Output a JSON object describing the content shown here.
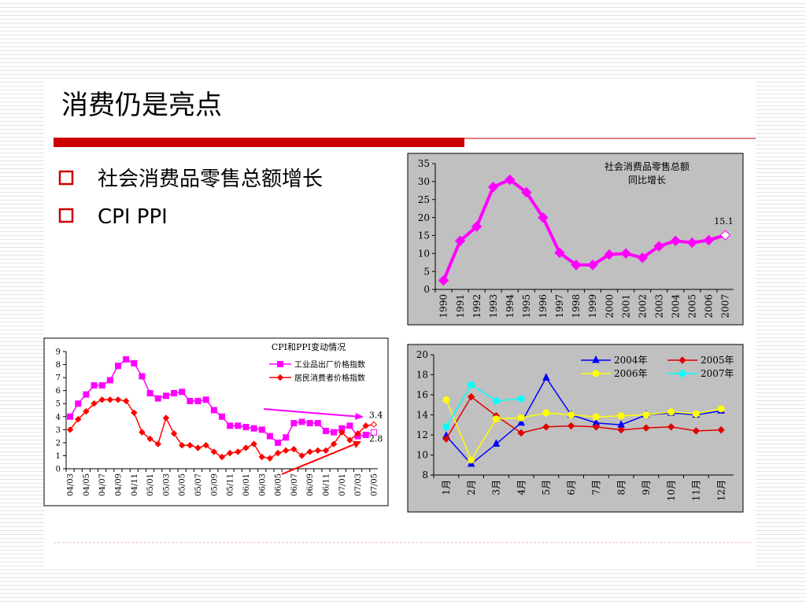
{
  "title": "消费仍是亮点",
  "bullets": [
    "社会消费品零售总额增长",
    "CPI PPI"
  ],
  "chart_data": [
    {
      "type": "line",
      "title": [
        "社会消费品零售总额",
        "同比增长"
      ],
      "categories": [
        "1990",
        "1991",
        "1992",
        "1993",
        "1994",
        "1995",
        "1996",
        "1997",
        "1998",
        "1999",
        "2000",
        "2001",
        "2002",
        "2003",
        "2004",
        "2005",
        "2006",
        "2007"
      ],
      "values": [
        2.5,
        13.5,
        17.5,
        28.5,
        30.5,
        27,
        20,
        10.2,
        6.8,
        6.8,
        9.7,
        10,
        8.8,
        12,
        13.5,
        13,
        13.7,
        15.1
      ],
      "color": "#ff00ff",
      "marker": "diamond",
      "data_labels": "last",
      "last_marker_hollow": true,
      "ylim": [
        0,
        35
      ],
      "yticks": [
        0,
        5,
        10,
        15,
        20,
        25,
        30,
        35
      ],
      "grid": false
    },
    {
      "type": "line",
      "title": "CPI和PPI变动情况",
      "categories": [
        "04/03",
        null,
        "04/05",
        null,
        "04/07",
        null,
        "04/09",
        null,
        "04/11",
        null,
        "05/01",
        null,
        "05/03",
        null,
        "05/05",
        null,
        "05/07",
        null,
        "05/09",
        null,
        "05/11",
        null,
        "06/01",
        null,
        "06/03",
        null,
        "06/05",
        null,
        "06/07",
        null,
        "06/09",
        null,
        "06/11",
        null,
        "07/01",
        null,
        "07/03",
        null,
        "07/05"
      ],
      "series": [
        {
          "name": "工业品出厂价格指数",
          "color": "#ff00ff",
          "marker": "square",
          "values": [
            4.0,
            5.0,
            5.7,
            6.4,
            6.4,
            6.8,
            7.9,
            8.4,
            8.1,
            7.1,
            5.8,
            5.4,
            5.6,
            5.8,
            5.9,
            5.2,
            5.2,
            5.3,
            4.5,
            4.0,
            3.3,
            3.3,
            3.2,
            3.1,
            3.0,
            2.5,
            2.0,
            2.4,
            3.5,
            3.6,
            3.5,
            3.5,
            2.9,
            2.8,
            3.1,
            3.3,
            2.5,
            2.6,
            2.8
          ]
        },
        {
          "name": "居民消费者价格指数",
          "color": "#ff0000",
          "marker": "diamond",
          "values": [
            3.0,
            3.8,
            4.4,
            5.0,
            5.3,
            5.3,
            5.3,
            5.2,
            4.3,
            2.8,
            2.3,
            1.9,
            3.9,
            2.7,
            1.8,
            1.8,
            1.6,
            1.8,
            1.3,
            0.9,
            1.2,
            1.3,
            1.6,
            1.9,
            0.9,
            0.8,
            1.2,
            1.4,
            1.5,
            1.0,
            1.3,
            1.4,
            1.4,
            1.9,
            2.8,
            2.2,
            2.7,
            3.3,
            3.4
          ]
        }
      ],
      "data_labels": "last",
      "last_marker_hollow": true,
      "legend": "upper right",
      "ylim": [
        0,
        9
      ],
      "yticks": [
        0,
        1,
        2,
        3,
        4,
        5,
        6,
        7,
        8,
        9
      ],
      "grid": false
    },
    {
      "type": "line",
      "categories": [
        "1月",
        "2月",
        "3月",
        "4月",
        "5月",
        "6月",
        "7月",
        "8月",
        "9月",
        "10月",
        "11月",
        "12月"
      ],
      "series": [
        {
          "name": "2004年",
          "color": "#0000ff",
          "marker": "triangle",
          "values": [
            11.9,
            9.1,
            11.1,
            13.2,
            17.7,
            14.0,
            13.2,
            13.0,
            14.0,
            14.2,
            14.0,
            14.4
          ]
        },
        {
          "name": "2005年",
          "color": "#e00000",
          "marker": "diamond",
          "values": [
            11.6,
            15.8,
            13.9,
            12.2,
            12.8,
            12.9,
            12.8,
            12.5,
            12.7,
            12.8,
            12.4,
            12.5
          ]
        },
        {
          "name": "2006年",
          "color": "#ffff00",
          "marker": "circle",
          "values": [
            15.5,
            9.5,
            13.6,
            13.7,
            14.2,
            14.0,
            13.8,
            13.9,
            14.0,
            14.3,
            14.1,
            14.6
          ]
        },
        {
          "name": "2007年",
          "color": "#00ffff",
          "marker": "circle",
          "values": [
            12.8,
            17.0,
            15.4,
            15.6,
            null,
            null,
            null,
            null,
            null,
            null,
            null,
            null
          ]
        }
      ],
      "legend": "upper right",
      "ylim": [
        8,
        20
      ],
      "yticks": [
        8,
        10,
        12,
        14,
        16,
        18,
        20
      ],
      "grid": false
    }
  ]
}
